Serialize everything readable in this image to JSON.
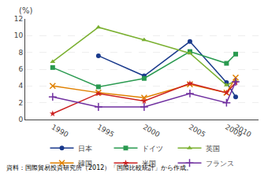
{
  "chart_data": {
    "type": "line",
    "ylabel": "(%)",
    "annotations": [
      "資料：国際貿易投資研究所（2012）「国際比較統計」から作成。"
    ],
    "x": [
      1990,
      1995,
      2000,
      2005,
      2009,
      2010
    ],
    "series": [
      {
        "name": "日本",
        "color": "#1a3a8c",
        "marker": "circle",
        "values": [
          null,
          7.6,
          5.2,
          9.3,
          4.4,
          2.7
        ]
      },
      {
        "name": "ドイツ",
        "color": "#2a9a50",
        "marker": "square",
        "values": [
          6.2,
          3.9,
          4.9,
          8.1,
          6.7,
          7.8
        ]
      },
      {
        "name": "英国",
        "color": "#7ab030",
        "marker": "triangle-up",
        "values": [
          6.9,
          11.0,
          9.5,
          7.9,
          4.1,
          4.6
        ]
      },
      {
        "name": "韓国",
        "color": "#e08000",
        "marker": "x",
        "values": [
          4.0,
          3.2,
          2.6,
          4.2,
          3.2,
          5.0
        ]
      },
      {
        "name": "米国",
        "color": "#cc2020",
        "marker": "star",
        "values": [
          0.7,
          3.1,
          2.2,
          4.3,
          3.2,
          4.4
        ]
      },
      {
        "name": "フランス",
        "color": "#7030a0",
        "marker": "plus",
        "values": [
          2.7,
          1.5,
          1.5,
          3.1,
          2.0,
          4.5
        ]
      }
    ],
    "xlim": [
      1987,
      2012.5
    ],
    "xticks": [
      1990,
      1995,
      2000,
      2005,
      2009,
      2010
    ],
    "ylim": [
      0,
      12
    ],
    "yticks": [
      0,
      2,
      4,
      6,
      8,
      10,
      12
    ],
    "grid": "y",
    "legend": "bottom"
  }
}
